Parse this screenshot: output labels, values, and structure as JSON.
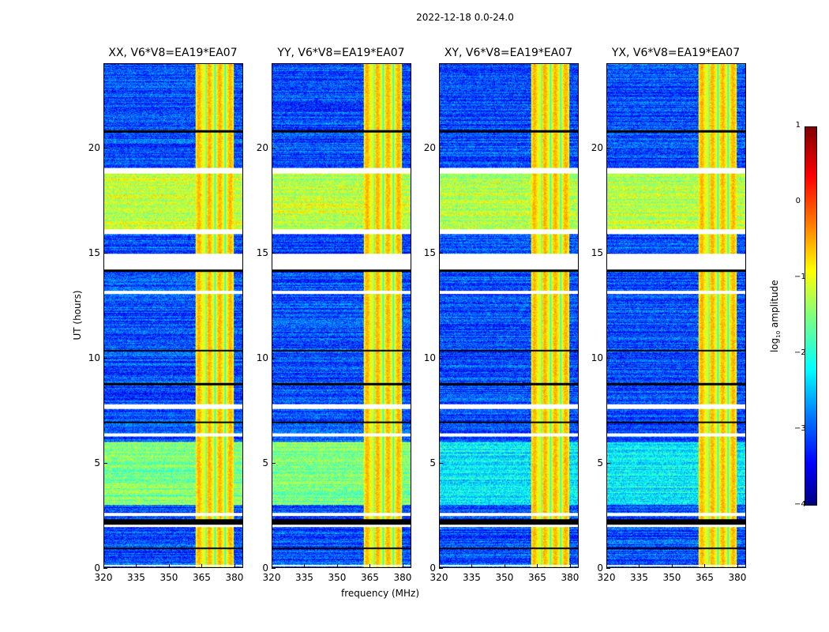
{
  "suptitle": "2022-12-18 0.0-24.0",
  "chart_data": {
    "type": "heatmap",
    "panels": [
      {
        "title": "XX, V6*V8=EA19*EA07",
        "pol": "XX"
      },
      {
        "title": "YY, V6*V8=EA19*EA07",
        "pol": "YY"
      },
      {
        "title": "XY, V6*V8=EA19*EA07",
        "pol": "XY"
      },
      {
        "title": "YX, V6*V8=EA19*EA07",
        "pol": "YX"
      }
    ],
    "xlabel": "frequency (MHz)",
    "ylabel": "UT (hours)",
    "xlim": [
      320,
      384
    ],
    "ylim": [
      0,
      24
    ],
    "xticks": [
      "320",
      "335",
      "350",
      "365",
      "380"
    ],
    "xtick_values": [
      320,
      335,
      350,
      365,
      380
    ],
    "yticks": [
      "0",
      "5",
      "10",
      "15",
      "20"
    ],
    "ytick_values": [
      0,
      5,
      10,
      15,
      20
    ],
    "colorbar": {
      "label_prefix": "log",
      "label_sub": "10",
      "label_suffix": " amplitude",
      "range": [
        -4,
        1
      ],
      "ticks": [
        "1",
        "0",
        "−1",
        "−2",
        "−3",
        "−4"
      ],
      "tick_values": [
        1,
        0,
        -1,
        -2,
        -3,
        -4
      ],
      "colormap": "jet"
    },
    "baseline_log_amp": -3.0,
    "rfi_band_mhz": [
      362,
      380
    ],
    "rfi_log_amp": -0.8,
    "rfi_notch_mhz": [
      367,
      371,
      376
    ],
    "high_level_hours": [
      [
        16.0,
        19.0,
        -1.2
      ],
      [
        3.0,
        6.0,
        -1.5
      ]
    ],
    "flagged_white_hours": [
      [
        18.8,
        19.05
      ],
      [
        15.9,
        16.15
      ],
      [
        14.2,
        14.95
      ],
      [
        13.05,
        13.2
      ],
      [
        7.55,
        7.8
      ],
      [
        6.25,
        6.4
      ],
      [
        2.45,
        2.6
      ],
      [
        1.95,
        2.05
      ],
      [
        0.05,
        0.15
      ]
    ],
    "flagged_black_hours": [
      [
        20.75,
        20.85
      ],
      [
        14.1,
        14.2
      ],
      [
        10.3,
        10.38
      ],
      [
        8.7,
        8.8
      ],
      [
        6.9,
        6.98
      ],
      [
        2.05,
        2.3
      ],
      [
        0.9,
        0.97
      ]
    ]
  }
}
